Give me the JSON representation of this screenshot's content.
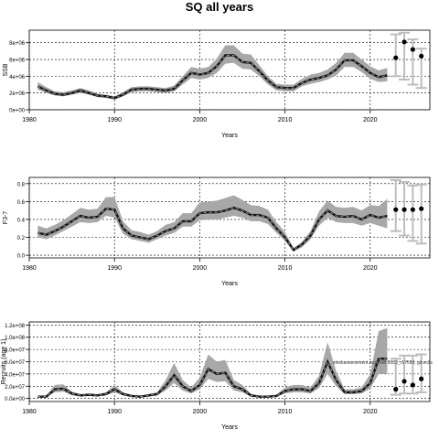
{
  "title": "SQ all years",
  "stamp": "stockassessment.org (NW 2023_r17555, git:ec2c",
  "chart_data": [
    {
      "type": "line",
      "name": "ssb",
      "ylabel": "SSB",
      "xlabel": "Years",
      "xlim": [
        1980,
        2027
      ],
      "ylim": [
        0,
        9500000
      ],
      "xticks": [
        1980,
        1990,
        2000,
        2010,
        2020
      ],
      "yticks": [
        0,
        2000000,
        4000000,
        6000000,
        8000000
      ],
      "ytick_labels": [
        "0e+00",
        "2e+06",
        "4e+06",
        "6e+06",
        "8e+06"
      ],
      "grid": true,
      "x": [
        1981,
        1982,
        1983,
        1984,
        1985,
        1986,
        1987,
        1988,
        1989,
        1990,
        1991,
        1992,
        1993,
        1994,
        1995,
        1996,
        1997,
        1998,
        1999,
        2000,
        2001,
        2002,
        2003,
        2004,
        2005,
        2006,
        2007,
        2008,
        2009,
        2010,
        2011,
        2012,
        2013,
        2014,
        2015,
        2016,
        2017,
        2018,
        2019,
        2020,
        2021,
        2022
      ],
      "estimate": [
        2800000,
        2300000,
        1900000,
        1800000,
        2000000,
        2300000,
        2000000,
        1700000,
        1600000,
        1400000,
        1800000,
        2400000,
        2500000,
        2500000,
        2400000,
        2300000,
        2500000,
        3500000,
        4400000,
        4200000,
        4400000,
        5200000,
        6500000,
        6500000,
        5700000,
        5600000,
        4600000,
        3500000,
        2700000,
        2600000,
        2600000,
        3200000,
        3600000,
        3800000,
        4100000,
        4800000,
        5900000,
        5900000,
        5200000,
        4400000,
        3900000,
        4100000
      ],
      "low": [
        2400000,
        2000000,
        1700000,
        1600000,
        1800000,
        2000000,
        1800000,
        1500000,
        1400000,
        1200000,
        1600000,
        2100000,
        2200000,
        2200000,
        2100000,
        2000000,
        2200000,
        3000000,
        3800000,
        3600000,
        3800000,
        4400000,
        5500000,
        5600000,
        4900000,
        4800000,
        4000000,
        3000000,
        2300000,
        2200000,
        2200000,
        2800000,
        3100000,
        3300000,
        3600000,
        4100000,
        5100000,
        5100000,
        4500000,
        3700000,
        3300000,
        3400000
      ],
      "high": [
        3300000,
        2700000,
        2200000,
        2100000,
        2300000,
        2600000,
        2300000,
        1900000,
        1800000,
        1600000,
        2100000,
        2700000,
        2800000,
        2800000,
        2700000,
        2600000,
        2900000,
        4000000,
        5100000,
        4900000,
        5100000,
        6100000,
        7700000,
        7700000,
        6700000,
        6600000,
        5300000,
        4000000,
        3100000,
        3000000,
        3000000,
        3700000,
        4200000,
        4400000,
        4800000,
        5600000,
        6800000,
        6800000,
        6000000,
        5200000,
        4700000,
        5000000
      ],
      "forecast": {
        "x": [
          2023,
          2024,
          2025,
          2026
        ],
        "median": [
          6200000,
          8100000,
          7200000,
          6400000
        ],
        "low": [
          4000000,
          3600000,
          3000000,
          2600000
        ],
        "high": [
          9000000,
          9200000,
          8400000,
          7300000
        ]
      }
    },
    {
      "type": "line",
      "name": "fbar",
      "ylabel": "F3-7",
      "xlabel": "Years",
      "xlim": [
        1980,
        2027
      ],
      "ylim": [
        -0.03,
        0.87
      ],
      "xticks": [
        1980,
        1990,
        2000,
        2010,
        2020
      ],
      "yticks": [
        0,
        0.2,
        0.4,
        0.6,
        0.8
      ],
      "ytick_labels": [
        "0.0",
        "0.2",
        "0.4",
        "0.6",
        "0.8"
      ],
      "grid": true,
      "x": [
        1981,
        1982,
        1983,
        1984,
        1985,
        1986,
        1987,
        1988,
        1989,
        1990,
        1991,
        1992,
        1993,
        1994,
        1995,
        1996,
        1997,
        1998,
        1999,
        2000,
        2001,
        2002,
        2003,
        2004,
        2005,
        2006,
        2007,
        2008,
        2009,
        2010,
        2011,
        2012,
        2013,
        2014,
        2015,
        2016,
        2017,
        2018,
        2019,
        2020,
        2021,
        2022
      ],
      "estimate": [
        0.25,
        0.23,
        0.27,
        0.32,
        0.38,
        0.44,
        0.42,
        0.43,
        0.52,
        0.51,
        0.3,
        0.22,
        0.2,
        0.18,
        0.22,
        0.27,
        0.3,
        0.38,
        0.38,
        0.47,
        0.48,
        0.48,
        0.5,
        0.53,
        0.5,
        0.45,
        0.45,
        0.42,
        0.3,
        0.2,
        0.06,
        0.12,
        0.22,
        0.4,
        0.5,
        0.44,
        0.43,
        0.44,
        0.4,
        0.45,
        0.42,
        0.44
      ],
      "low": [
        0.2,
        0.18,
        0.22,
        0.27,
        0.32,
        0.37,
        0.36,
        0.37,
        0.44,
        0.42,
        0.24,
        0.18,
        0.16,
        0.14,
        0.18,
        0.22,
        0.25,
        0.32,
        0.32,
        0.39,
        0.4,
        0.4,
        0.42,
        0.44,
        0.42,
        0.38,
        0.38,
        0.35,
        0.25,
        0.16,
        0.04,
        0.09,
        0.18,
        0.33,
        0.42,
        0.37,
        0.36,
        0.36,
        0.33,
        0.36,
        0.33,
        0.3
      ],
      "high": [
        0.33,
        0.3,
        0.34,
        0.39,
        0.46,
        0.53,
        0.51,
        0.52,
        0.65,
        0.65,
        0.38,
        0.28,
        0.26,
        0.23,
        0.27,
        0.34,
        0.37,
        0.47,
        0.47,
        0.59,
        0.6,
        0.61,
        0.64,
        0.67,
        0.62,
        0.56,
        0.55,
        0.51,
        0.37,
        0.26,
        0.08,
        0.15,
        0.27,
        0.49,
        0.61,
        0.54,
        0.53,
        0.54,
        0.5,
        0.56,
        0.55,
        0.63
      ],
      "forecast": {
        "x": [
          2023,
          2024,
          2025,
          2026
        ],
        "median": [
          0.51,
          0.51,
          0.51,
          0.52
        ],
        "low": [
          0.27,
          0.22,
          0.16,
          0.13
        ],
        "high": [
          0.84,
          0.82,
          0.78,
          0.79
        ]
      }
    },
    {
      "type": "line",
      "name": "recruitment",
      "ylabel": "Recruits (age 1)",
      "xlabel": "Years",
      "xlim": [
        1980,
        2027
      ],
      "ylim": [
        -5000000,
        125000000
      ],
      "xticks": [
        1980,
        1990,
        2000,
        2010,
        2020
      ],
      "yticks": [
        0,
        20000000,
        40000000,
        60000000,
        80000000,
        100000000,
        120000000
      ],
      "ytick_labels": [
        "0.0e+00",
        "2.0e+07",
        "4.0e+07",
        "6.0e+07",
        "8.0e+07",
        "1.0e+08",
        "1.2e+08"
      ],
      "grid": true,
      "x": [
        1981,
        1982,
        1983,
        1984,
        1985,
        1986,
        1987,
        1988,
        1989,
        1990,
        1991,
        1992,
        1993,
        1994,
        1995,
        1996,
        1997,
        1998,
        1999,
        2000,
        2001,
        2002,
        2003,
        2004,
        2005,
        2006,
        2007,
        2008,
        2009,
        2010,
        2011,
        2012,
        2013,
        2014,
        2015,
        2016,
        2017,
        2018,
        2019,
        2020,
        2021,
        2022
      ],
      "estimate": [
        3000000,
        3000000,
        15000000,
        16000000,
        8000000,
        5000000,
        6000000,
        5000000,
        7000000,
        15000000,
        7000000,
        4000000,
        3000000,
        5000000,
        7000000,
        20000000,
        38000000,
        20000000,
        12000000,
        22000000,
        48000000,
        40000000,
        42000000,
        20000000,
        15000000,
        5000000,
        3000000,
        3000000,
        4000000,
        12000000,
        15000000,
        15000000,
        12000000,
        25000000,
        60000000,
        30000000,
        10000000,
        10000000,
        12000000,
        25000000,
        65000000,
        65000000
      ],
      "low": [
        2000000,
        2000000,
        10000000,
        11000000,
        5000000,
        3000000,
        4000000,
        3000000,
        5000000,
        10000000,
        5000000,
        3000000,
        2000000,
        3000000,
        5000000,
        13000000,
        25000000,
        13000000,
        8000000,
        15000000,
        32000000,
        27000000,
        28000000,
        13000000,
        10000000,
        3000000,
        2000000,
        2000000,
        3000000,
        8000000,
        10000000,
        10000000,
        8000000,
        17000000,
        40000000,
        20000000,
        7000000,
        7000000,
        8000000,
        16000000,
        40000000,
        40000000
      ],
      "high": [
        4000000,
        4500000,
        22000000,
        23000000,
        11000000,
        7000000,
        8000000,
        7000000,
        10000000,
        22000000,
        10000000,
        6000000,
        4500000,
        7000000,
        10000000,
        30000000,
        58000000,
        30000000,
        18000000,
        34000000,
        72000000,
        60000000,
        63000000,
        30000000,
        22000000,
        7500000,
        4500000,
        4500000,
        6000000,
        18000000,
        22000000,
        22000000,
        18000000,
        37000000,
        92000000,
        45000000,
        15000000,
        15000000,
        18000000,
        40000000,
        110000000,
        115000000
      ],
      "forecast": {
        "x": [
          2023,
          2024,
          2025,
          2026
        ],
        "median": [
          15000000,
          28000000,
          22000000,
          32000000
        ],
        "low": [
          6000000,
          8000000,
          8000000,
          10000000
        ],
        "high": [
          65000000,
          70000000,
          70000000,
          72000000
        ]
      }
    }
  ]
}
